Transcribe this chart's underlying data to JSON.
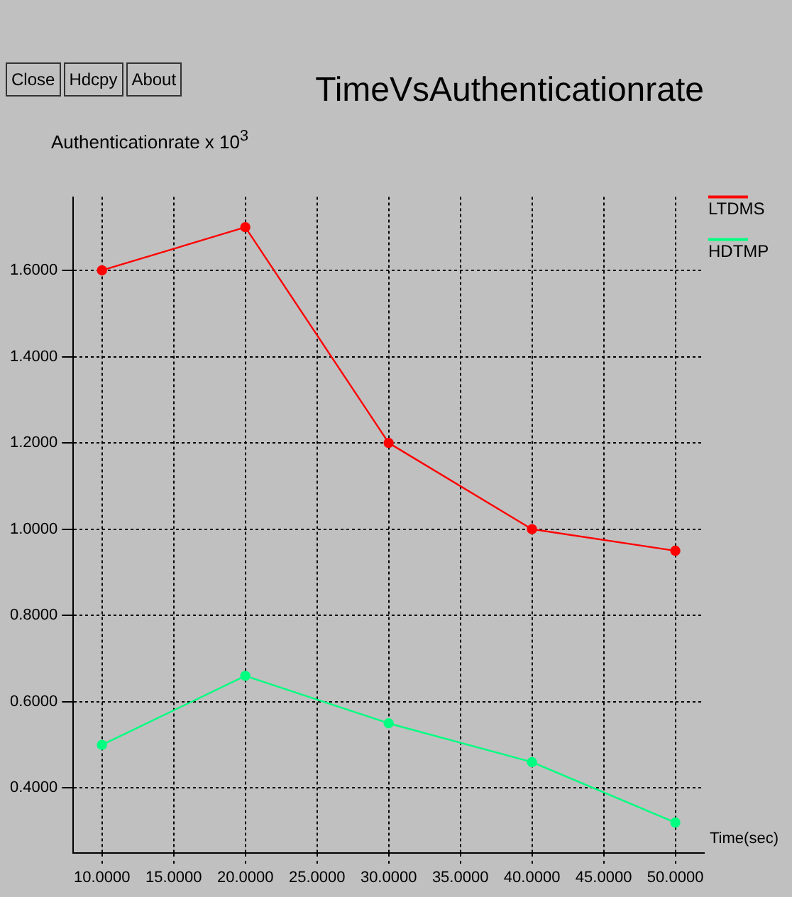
{
  "chart_data": {
    "type": "line",
    "title": "TimeVsAuthenticationrate",
    "ylabel": "Authenticationrate x 10$^{3}$",
    "xlabel": "Time(sec)",
    "annotations": [
      "Close",
      "Hdcpy",
      "About"
    ],
    "x": [
      10,
      20,
      30,
      40,
      50
    ],
    "series": [
      {
        "name": "LTDMS",
        "color": "#ff0000",
        "values": [
          1.6,
          1.7,
          1.2,
          1.0,
          0.95
        ]
      },
      {
        "name": "HDTMP",
        "color": "#00ff80",
        "values": [
          0.5,
          0.66,
          0.55,
          0.46,
          0.32
        ]
      }
    ],
    "xlim": [
      8,
      52
    ],
    "ylim": [
      0.25,
      1.77
    ],
    "xticks": [
      {
        "value": 10,
        "label": "10.0000"
      },
      {
        "value": 15,
        "label": "15.0000"
      },
      {
        "value": 20,
        "label": "20.0000"
      },
      {
        "value": 25,
        "label": "25.0000"
      },
      {
        "value": 30,
        "label": "30.0000"
      },
      {
        "value": 35,
        "label": "35.0000"
      },
      {
        "value": 40,
        "label": "40.0000"
      },
      {
        "value": 45,
        "label": "45.0000"
      },
      {
        "value": 50,
        "label": "50.0000"
      }
    ],
    "yticks": [
      {
        "value": 0.4,
        "label": "0.4000"
      },
      {
        "value": 0.6,
        "label": "0.6000"
      },
      {
        "value": 0.8,
        "label": "0.8000"
      },
      {
        "value": 1.0,
        "label": "1.0000"
      },
      {
        "value": 1.2,
        "label": "1.2000"
      },
      {
        "value": 1.4,
        "label": "1.4000"
      },
      {
        "value": 1.6,
        "label": "1.6000"
      }
    ],
    "grid": true,
    "legend": "top right",
    "marker": "circle",
    "line_style": "solid"
  }
}
